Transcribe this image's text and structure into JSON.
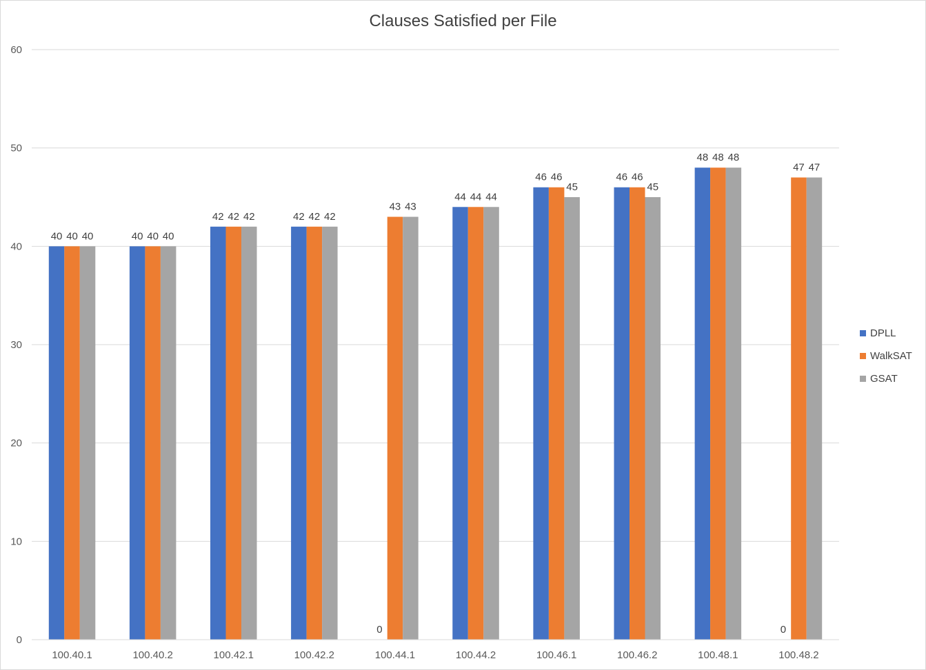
{
  "title": "Clauses Satisfied per File",
  "chart_data": {
    "type": "bar",
    "title": "Clauses Satisfied per File",
    "xlabel": "",
    "ylabel": "",
    "ylim": [
      0,
      60
    ],
    "yticks": [
      0,
      10,
      20,
      30,
      40,
      50,
      60
    ],
    "grid": true,
    "legend_position": "right",
    "categories": [
      "100.40.1",
      "100.40.2",
      "100.42.1",
      "100.42.2",
      "100.44.1",
      "100.44.2",
      "100.46.1",
      "100.46.2",
      "100.48.1",
      "100.48.2"
    ],
    "series": [
      {
        "name": "DPLL",
        "color": "#4472c4",
        "values": [
          40,
          40,
          42,
          42,
          0,
          44,
          46,
          46,
          48,
          0
        ]
      },
      {
        "name": "WalkSAT",
        "color": "#ed7d31",
        "values": [
          40,
          40,
          42,
          42,
          43,
          44,
          46,
          46,
          48,
          47
        ]
      },
      {
        "name": "GSAT",
        "color": "#a5a5a5",
        "values": [
          40,
          40,
          42,
          42,
          43,
          44,
          45,
          45,
          48,
          47
        ]
      }
    ]
  }
}
